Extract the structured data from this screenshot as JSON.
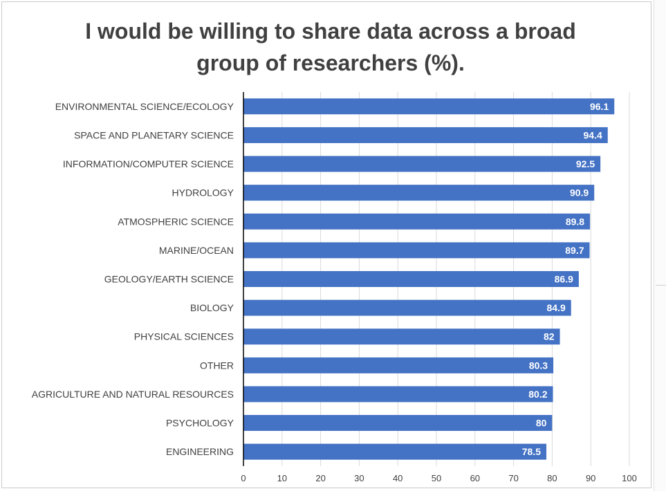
{
  "chart_data": {
    "type": "bar",
    "orientation": "horizontal",
    "title": "I would be willing to share data across a broad\ngroup of researchers (%).",
    "categories": [
      "ENVIRONMENTAL SCIENCE/ECOLOGY",
      "SPACE AND PLANETARY SCIENCE",
      "INFORMATION/COMPUTER SCIENCE",
      "HYDROLOGY",
      "ATMOSPHERIC SCIENCE",
      "MARINE/OCEAN",
      "GEOLOGY/EARTH SCIENCE",
      "BIOLOGY",
      "PHYSICAL SCIENCES",
      "OTHER",
      "AGRICULTURE AND NATURAL RESOURCES",
      "PSYCHOLOGY",
      "ENGINEERING"
    ],
    "values": [
      96.1,
      94.4,
      92.5,
      90.9,
      89.8,
      89.7,
      86.9,
      84.9,
      82,
      80.3,
      80.2,
      80,
      78.5
    ],
    "data_labels": [
      "96.1",
      "94.4",
      "92.5",
      "90.9",
      "89.8",
      "89.7",
      "86.9",
      "84.9",
      "82",
      "80.3",
      "80.2",
      "80",
      "78.5"
    ],
    "xlim": [
      0,
      100
    ],
    "xticks": [
      0,
      10,
      20,
      30,
      40,
      50,
      60,
      70,
      80,
      90,
      100
    ],
    "xlabel": "",
    "ylabel": "",
    "grid": "vertical",
    "legend": "none",
    "bar_color": "#4472c4",
    "grid_color": "#d9d9d9",
    "axis_color": "#000000"
  }
}
